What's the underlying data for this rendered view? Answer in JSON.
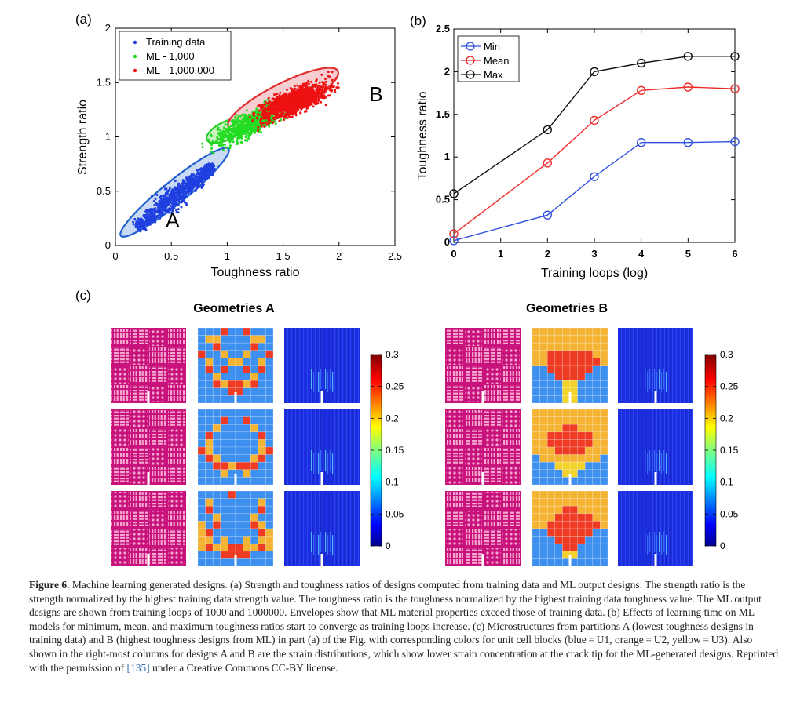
{
  "panels": {
    "a": "(a)",
    "b": "(b)",
    "c": "(c)"
  },
  "chart_data": [
    {
      "type": "scatter",
      "panel": "(a)",
      "xlabel": "Toughness ratio",
      "ylabel": "Strength ratio",
      "xlim": [
        0,
        2.5
      ],
      "ylim": [
        0,
        2
      ],
      "xticks": [
        "0",
        "0.5",
        "1",
        "1.5",
        "2",
        "2.5"
      ],
      "yticks": [
        "0",
        "0.5",
        "1",
        "1.5",
        "2"
      ],
      "legend_position": "top-left",
      "series": [
        {
          "name": "Training data",
          "color": "#1f3fe0",
          "center": [
            0.5,
            0.42
          ],
          "angle": 39,
          "spread": [
            0.45,
            0.05
          ],
          "count": 900
        },
        {
          "name": "ML - 1,000",
          "color": "#22dd22",
          "center": [
            1.2,
            1.12
          ],
          "angle": 30,
          "spread": [
            0.38,
            0.05
          ],
          "count": 700
        },
        {
          "name": "ML - 1,000,000",
          "color": "#ee1111",
          "center": [
            1.6,
            1.33
          ],
          "angle": 24,
          "spread": [
            0.35,
            0.05
          ],
          "count": 1300
        }
      ],
      "envelopes": [
        {
          "color": "#1f5fd0",
          "fill": "#c9daf2",
          "center": [
            0.53,
            0.49
          ],
          "rx": 0.62,
          "ry": 0.075,
          "angle": 39
        },
        {
          "color": "#22cc22",
          "fill": "#c8f2c0",
          "center": [
            1.0,
            1.06
          ],
          "rx": 0.2,
          "ry": 0.06,
          "angle": 25
        },
        {
          "color": "#e03030",
          "fill": "#f6cdd0",
          "center": [
            1.5,
            1.35
          ],
          "rx": 0.55,
          "ry": 0.1,
          "angle": 27
        }
      ],
      "annotations": [
        {
          "text": "A",
          "x": 0.45,
          "y": 0.17
        },
        {
          "text": "B",
          "x": 2.27,
          "y": 1.33
        }
      ]
    },
    {
      "type": "line",
      "panel": "(b)",
      "xlabel": "Training loops (log)",
      "ylabel": "Toughness ratio",
      "xlim": [
        0,
        6
      ],
      "ylim": [
        0,
        2.5
      ],
      "xticks": [
        "0",
        "1",
        "2",
        "3",
        "4",
        "5",
        "6"
      ],
      "yticks": [
        "0",
        "0.5",
        "1",
        "1.5",
        "2",
        "2.5"
      ],
      "legend_position": "top-left",
      "x": [
        0,
        2,
        3,
        4,
        5,
        6
      ],
      "series": [
        {
          "name": "Min",
          "color": "#3050e0",
          "values": [
            0.02,
            0.32,
            0.77,
            1.17,
            1.17,
            1.18
          ]
        },
        {
          "name": "Mean",
          "color": "#ee2a2a",
          "values": [
            0.1,
            0.93,
            1.43,
            1.78,
            1.82,
            1.8
          ]
        },
        {
          "name": "Max",
          "color": "#111111",
          "values": [
            0.57,
            1.32,
            2.0,
            2.1,
            2.18,
            2.18
          ]
        }
      ]
    }
  ],
  "geometries": {
    "a_title": "Geometries A",
    "b_title": "Geometries B",
    "colorbar_ticks": [
      "0.3",
      "0.25",
      "0.2",
      "0.15",
      "0.1",
      "0.05",
      "0"
    ],
    "legend_colors": {
      "U1": "#3d8ff0",
      "U2": "#f5b333",
      "U3": "#f3d22c",
      "red": "#ef3b24",
      "magenta": "#c8137d"
    },
    "a_grids": [
      [
        "BBBRBBRBBB",
        "BOOBBBBOOB",
        "BBRBBBBRBB",
        "RBBOBBOBBR",
        "BOBBOOBBOB",
        "BRBRBBRBRB",
        "BBOBBBBOBB",
        "BBRORRORBB",
        "BBBBRRBBBB",
        "BBBBBBBBBB"
      ],
      [
        "BBBBBBBBBB",
        "BBBRBBRBBB",
        "BBOBBBBOBB",
        "BRBBBBBBRB",
        "BOBBBBBBOB",
        "ROBBBBBBOR",
        "BROBBBBORB",
        "BBRRORRRBB",
        "BBBOBBOBBB",
        "BBBBBBBBBB"
      ],
      [
        "BBBBRBBBBB",
        "BOBBBBBBOB",
        "BRBBBBBBRB",
        "BBOBBBBOBB",
        "OBRBBBBROB",
        "ORBBBBBBRO",
        "OOBOBBOBOO",
        "OROORROORO",
        "BBBRRRRBBB",
        "BBBBBBBBBB"
      ]
    ],
    "b_grids": [
      [
        "OOOOOOOOOO",
        "OOOOOOOOOO",
        "OOOOOOOOOO",
        "OORRRRRROO",
        "OORRRRRRRO",
        "BBRRRRRRBB",
        "BBBRRRRBBB",
        "BBBBYYBBBB",
        "BBBBYYBBBB",
        "BBBBYYBBBB"
      ],
      [
        "OOOOOOOOOO",
        "OOOOOOOOOO",
        "OOOORROOOO",
        "OORRRRRROO",
        "OORRRRRROO",
        "OOORRRROOO",
        "BOOOOOOOOB",
        "BBBYYYYBBB",
        "BBBBYYBBBB",
        "BBBBBBBBBB"
      ],
      [
        "OOOOOOOOOO",
        "OOOOOOOOOO",
        "OOOORROOOO",
        "OOORRRRROO",
        "OORRRRRRRO",
        "BBRRRRRRBB",
        "BBBRRRRBBB",
        "BBBBRRBBBB",
        "BBBBYYBBBB",
        "BBBBBBBBBB"
      ]
    ]
  },
  "caption": {
    "label": "Figure 6.",
    "text": " Machine learning generated designs. (a) Strength and toughness ratios of designs computed from training data and ML output designs. The strength ratio is the strength normalized by the highest training data strength value. The toughness ratio is the toughness normalized by the highest training data toughness value. The ML output designs are shown from training loops of 1000 and 1000000. Envelopes show that ML material properties exceed those of training data. (b) Effects of learning time on ML models for minimum, mean, and maximum toughness ratios start to converge as training loops increase. (c) Microstructures from partitions A (lowest toughness designs in training data) and B (highest toughness designs from ML) in part (a) of the Fig. with corresponding colors for unit cell blocks (blue = U1, orange = U2, yellow = U3). Also shown in the right-most columns for designs A and B are the strain distributions, which show lower strain concentration at the crack tip for the ML-generated designs. Reprinted with the permission of ",
    "ref": "[135]",
    "tail": " under a Creative Commons CC-BY license."
  }
}
